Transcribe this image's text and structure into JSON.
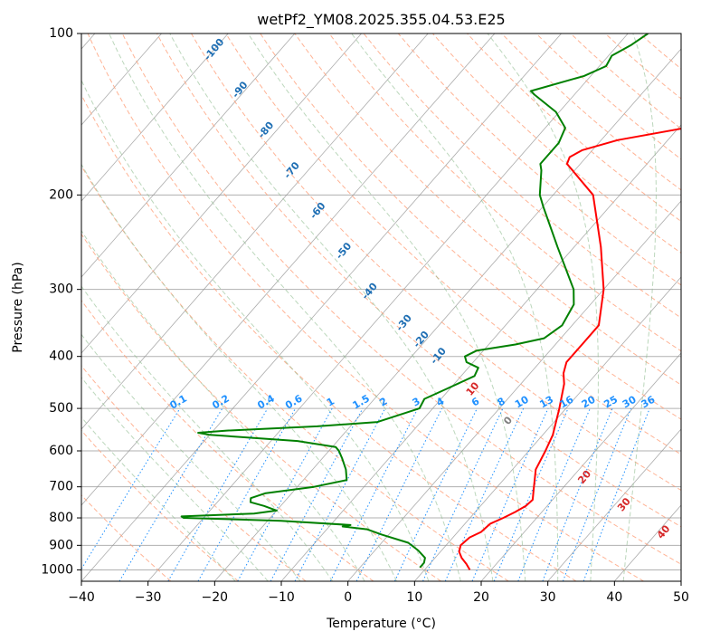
{
  "chart_data": {
    "type": "line",
    "title": "wetPf2_YM08.2025.355.04.53.E25",
    "xlabel": "Temperature (°C)",
    "ylabel": "Pressure (hPa)",
    "xlim": [
      -40,
      50
    ],
    "ylim": [
      1050,
      100
    ],
    "y_scale": "log",
    "x_ticks": [
      -40,
      -30,
      -20,
      -10,
      0,
      10,
      20,
      30,
      40,
      50
    ],
    "x_tick_labels": [
      "−40",
      "−30",
      "−20",
      "−10",
      "0",
      "10",
      "20",
      "30",
      "40",
      "50"
    ],
    "y_ticks": [
      100,
      200,
      300,
      400,
      500,
      600,
      700,
      800,
      900,
      1000
    ],
    "y_tick_labels": [
      "100",
      "200",
      "300",
      "400",
      "500",
      "600",
      "700",
      "800",
      "900",
      "1000"
    ],
    "grid": true,
    "skew": true,
    "series": [
      {
        "color": "#ff0000",
        "points": [
          [
            1000,
            16.8
          ],
          [
            975,
            15.5
          ],
          [
            950,
            14.0
          ],
          [
            925,
            12.8
          ],
          [
            900,
            12.2
          ],
          [
            870,
            12.5
          ],
          [
            850,
            13.5
          ],
          [
            820,
            13.8
          ],
          [
            800,
            15.0
          ],
          [
            780,
            16.0
          ],
          [
            760,
            16.8
          ],
          [
            740,
            17.0
          ],
          [
            700,
            15.5
          ],
          [
            650,
            13.5
          ],
          [
            600,
            12.5
          ],
          [
            560,
            11.5
          ],
          [
            500,
            9.0
          ],
          [
            450,
            6.5
          ],
          [
            430,
            5.0
          ],
          [
            410,
            4.0
          ],
          [
            380,
            4.0
          ],
          [
            350,
            4.0
          ],
          [
            300,
            0.0
          ],
          [
            250,
            -6.0
          ],
          [
            200,
            -14.0
          ],
          [
            175,
            -22.0
          ],
          [
            170,
            -22.5
          ],
          [
            165,
            -21.5
          ],
          [
            158,
            -17.5
          ],
          [
            150,
            -9.0
          ],
          [
            145,
            -5.0
          ],
          [
            140,
            -3.0
          ],
          [
            130,
            -2.0
          ],
          [
            125,
            -1.0
          ],
          [
            115,
            -1.0
          ],
          [
            110,
            0.0
          ],
          [
            100,
            0.0
          ]
        ]
      },
      {
        "color": "#008000",
        "points": [
          [
            990,
            9.0
          ],
          [
            970,
            9.0
          ],
          [
            950,
            8.5
          ],
          [
            920,
            6.5
          ],
          [
            890,
            4.0
          ],
          [
            860,
            -1.0
          ],
          [
            840,
            -4.0
          ],
          [
            830,
            -8.0
          ],
          [
            825,
            -7.0
          ],
          [
            810,
            -18.0
          ],
          [
            800,
            -33.0
          ],
          [
            795,
            -33.5
          ],
          [
            785,
            -23.0
          ],
          [
            775,
            -20.0
          ],
          [
            760,
            -22.5
          ],
          [
            748,
            -25.0
          ],
          [
            735,
            -25.5
          ],
          [
            720,
            -24.0
          ],
          [
            700,
            -17.5
          ],
          [
            680,
            -13.5
          ],
          [
            650,
            -15.0
          ],
          [
            620,
            -17.0
          ],
          [
            600,
            -18.5
          ],
          [
            590,
            -19.5
          ],
          [
            575,
            -26.0
          ],
          [
            560,
            -40.0
          ],
          [
            555,
            -42.0
          ],
          [
            550,
            -38.0
          ],
          [
            540,
            -25.0
          ],
          [
            530,
            -16.5
          ],
          [
            500,
            -12.0
          ],
          [
            480,
            -12.5
          ],
          [
            460,
            -10.5
          ],
          [
            435,
            -8.0
          ],
          [
            420,
            -8.5
          ],
          [
            410,
            -11.0
          ],
          [
            400,
            -12.0
          ],
          [
            390,
            -11.0
          ],
          [
            380,
            -6.0
          ],
          [
            370,
            -2.5
          ],
          [
            350,
            -1.5
          ],
          [
            320,
            -2.5
          ],
          [
            300,
            -4.5
          ],
          [
            250,
            -12.5
          ],
          [
            210,
            -20.0
          ],
          [
            200,
            -22.0
          ],
          [
            180,
            -25.0
          ],
          [
            175,
            -26.0
          ],
          [
            160,
            -26.0
          ],
          [
            150,
            -27.0
          ],
          [
            140,
            -30.5
          ],
          [
            130,
            -36.0
          ],
          [
            128,
            -37.0
          ],
          [
            120,
            -31.0
          ],
          [
            115,
            -29.0
          ],
          [
            110,
            -29.5
          ],
          [
            105,
            -28.0
          ],
          [
            100,
            -27.0
          ]
        ]
      }
    ],
    "dry_adiabat_labels": [
      "-100",
      "-90",
      "-80",
      "-70",
      "-60",
      "-50",
      "-40",
      "-30",
      "-20",
      "-10",
      "0",
      "10",
      "20",
      "30",
      "40"
    ],
    "mixing_ratio_labels": [
      "0.1",
      "0.2",
      "0.4",
      "0.6",
      "1",
      "1.5",
      "2",
      "3",
      "4",
      "6",
      "8",
      "10",
      "13",
      "16",
      "20",
      "25",
      "30",
      "36"
    ],
    "colors": {
      "temperature": "#ff0000",
      "dewpoint": "#008000",
      "isotherm": "#909090",
      "dry_adiabat": "#ffa07a",
      "moist_adiabat": "#8fbc8f",
      "mixing_ratio": "#1e90ff",
      "dry_adiabat_label_cold": "#1f6fb4",
      "dry_adiabat_label_zero": "#808080",
      "dry_adiabat_label_warm": "#d62728"
    }
  }
}
